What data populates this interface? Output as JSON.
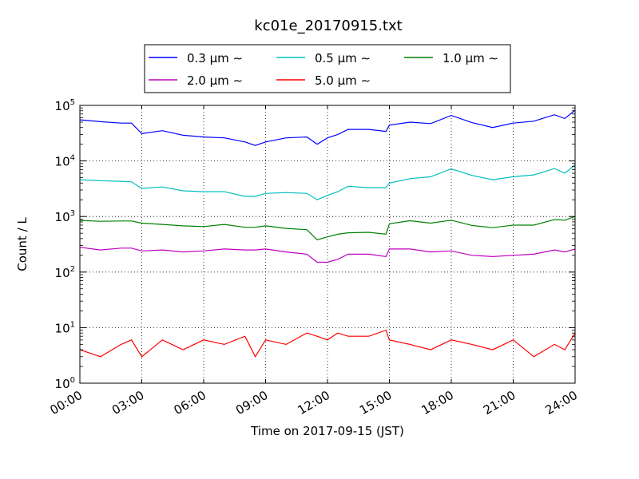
{
  "chart_data": {
    "type": "line",
    "title": "kc01e_20170915.txt",
    "xlabel": "Time on 2017-09-15 (JST)",
    "ylabel": "Count / L",
    "y_scale": "log",
    "xlim": [
      "00:00",
      "24:00"
    ],
    "ylim": [
      1,
      100000
    ],
    "grid": true,
    "legend_position": "top-center, above plot",
    "x_ticks": [
      "00:00",
      "03:00",
      "06:00",
      "09:00",
      "12:00",
      "15:00",
      "18:00",
      "21:00",
      "24:00"
    ],
    "y_ticks": [
      {
        "base": "10",
        "exp": "0"
      },
      {
        "base": "10",
        "exp": "1"
      },
      {
        "base": "10",
        "exp": "2"
      },
      {
        "base": "10",
        "exp": "3"
      },
      {
        "base": "10",
        "exp": "4"
      },
      {
        "base": "10",
        "exp": "5"
      }
    ],
    "x": [
      "00:00",
      "01:00",
      "02:00",
      "02:30",
      "03:00",
      "04:00",
      "05:00",
      "06:00",
      "07:00",
      "08:00",
      "08:30",
      "09:00",
      "10:00",
      "11:00",
      "11:30",
      "12:00",
      "12:30",
      "13:00",
      "14:00",
      "14:50",
      "15:00",
      "16:00",
      "17:00",
      "18:00",
      "19:00",
      "20:00",
      "21:00",
      "22:00",
      "23:00",
      "23:30",
      "24:00"
    ],
    "series": [
      {
        "name": "0.3 μm ∼",
        "color": "#0000ff",
        "values": [
          55000,
          51000,
          48000,
          48000,
          31000,
          35000,
          29000,
          27000,
          26000,
          22000,
          19000,
          22000,
          26000,
          27000,
          20000,
          26000,
          30000,
          37000,
          37000,
          34000,
          44000,
          50000,
          47000,
          66000,
          49000,
          40000,
          48000,
          52000,
          68000,
          58000,
          82000
        ]
      },
      {
        "name": "0.5 μm ∼",
        "color": "#00bfbf",
        "values": [
          4600,
          4400,
          4300,
          4200,
          3200,
          3400,
          2900,
          2800,
          2800,
          2300,
          2300,
          2600,
          2700,
          2600,
          2000,
          2400,
          2800,
          3500,
          3300,
          3300,
          4000,
          4800,
          5200,
          7200,
          5500,
          4600,
          5200,
          5600,
          7300,
          6000,
          8500
        ]
      },
      {
        "name": "1.0 μm ∼",
        "color": "#008000",
        "values": [
          850,
          820,
          830,
          830,
          760,
          720,
          680,
          660,
          720,
          640,
          640,
          680,
          610,
          580,
          380,
          430,
          480,
          510,
          520,
          480,
          740,
          840,
          760,
          860,
          690,
          630,
          700,
          700,
          880,
          860,
          1000
        ]
      },
      {
        "name": "2.0 μm ∼",
        "color": "#bf00bf",
        "values": [
          280,
          250,
          270,
          270,
          240,
          250,
          230,
          240,
          260,
          250,
          250,
          260,
          230,
          210,
          150,
          150,
          170,
          210,
          210,
          190,
          260,
          260,
          230,
          240,
          200,
          190,
          200,
          210,
          250,
          230,
          260
        ]
      },
      {
        "name": "5.0 μm ∼",
        "color": "#ff0000",
        "values": [
          4,
          3,
          5,
          6,
          3,
          6,
          4,
          6,
          5,
          7,
          3,
          6,
          5,
          8,
          7,
          6,
          8,
          7,
          7,
          9,
          6,
          5,
          4,
          6,
          5,
          4,
          6,
          3,
          5,
          4,
          8
        ]
      }
    ]
  }
}
